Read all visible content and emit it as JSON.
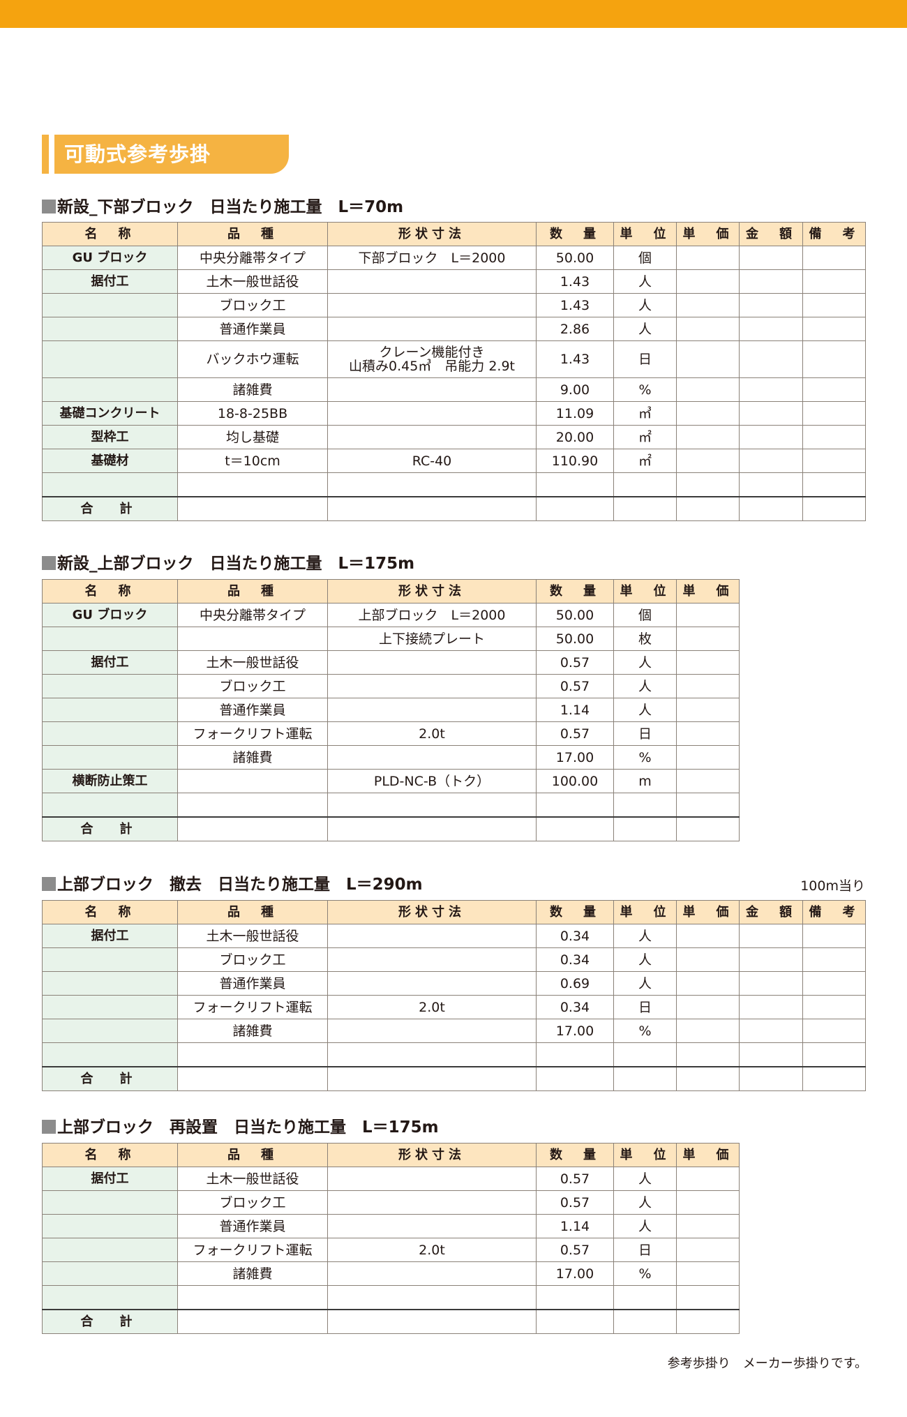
{
  "title": "可動式参考歩掛",
  "colors": {
    "accent": "#f5a30f",
    "title_band": "#f5b342",
    "header_bg": "#fde5bf",
    "name_col_bg": "#e8f3ea"
  },
  "sections": [
    {
      "title": "新設_下部ブロック　日当たり施工量　L＝70m",
      "note": "",
      "headers": [
        "名　称",
        "品　種",
        "形状寸法",
        "数　量",
        "単　位",
        "単　価",
        "金　額",
        "備　考"
      ],
      "rows": [
        [
          "GU ブロック",
          "中央分離帯タイプ",
          "下部ブロック　L＝2000",
          "50.00",
          "個"
        ],
        [
          "据付工",
          "土木一般世話役",
          "",
          "1.43",
          "人"
        ],
        [
          "",
          "ブロック工",
          "",
          "1.43",
          "人"
        ],
        [
          "",
          "普通作業員",
          "",
          "2.86",
          "人"
        ],
        [
          "",
          "バックホウ運転",
          "クレーン機能付き\n山積み0.45㎥　吊能力 2.9t",
          "1.43",
          "日"
        ],
        [
          "",
          "諸雑費",
          "",
          "9.00",
          "%"
        ],
        [
          "基礎コンクリート",
          "18-8-25BB",
          "",
          "11.09",
          "㎥"
        ],
        [
          "型枠工",
          "均し基礎",
          "",
          "20.00",
          "㎡"
        ],
        [
          "基礎材",
          "t＝10cm",
          "RC-40",
          "110.90",
          "㎡"
        ],
        [
          "",
          "",
          "",
          "",
          ""
        ]
      ],
      "total_label": "合　計"
    },
    {
      "title": "新設_上部ブロック　日当たり施工量　L＝175m",
      "note": "",
      "headers": [
        "名　称",
        "品　種",
        "形状寸法",
        "数　量",
        "単　位",
        "単　価"
      ],
      "rows": [
        [
          "GU ブロック",
          "中央分離帯タイプ",
          "上部ブロック　L＝2000",
          "50.00",
          "個"
        ],
        [
          "",
          "",
          "上下接続プレート",
          "50.00",
          "枚"
        ],
        [
          "据付工",
          "土木一般世話役",
          "",
          "0.57",
          "人"
        ],
        [
          "",
          "ブロック工",
          "",
          "0.57",
          "人"
        ],
        [
          "",
          "普通作業員",
          "",
          "1.14",
          "人"
        ],
        [
          "",
          "フォークリフト運転",
          "2.0t",
          "0.57",
          "日"
        ],
        [
          "",
          "諸雑費",
          "",
          "17.00",
          "%"
        ],
        [
          "横断防止策工",
          "",
          "PLD-NC-B（トク）",
          "100.00",
          "m"
        ],
        [
          "",
          "",
          "",
          "",
          ""
        ]
      ],
      "total_label": "合　計"
    },
    {
      "title": "上部ブロック　撤去　日当たり施工量　L＝290m",
      "note": "100m当り",
      "headers": [
        "名　称",
        "品　種",
        "形状寸法",
        "数　量",
        "単　位",
        "単　価",
        "金　額",
        "備　考"
      ],
      "rows": [
        [
          "据付工",
          "土木一般世話役",
          "",
          "0.34",
          "人"
        ],
        [
          "",
          "ブロック工",
          "",
          "0.34",
          "人"
        ],
        [
          "",
          "普通作業員",
          "",
          "0.69",
          "人"
        ],
        [
          "",
          "フォークリフト運転",
          "2.0t",
          "0.34",
          "日"
        ],
        [
          "",
          "諸雑費",
          "",
          "17.00",
          "%"
        ],
        [
          "",
          "",
          "",
          "",
          ""
        ]
      ],
      "total_label": "合　計"
    },
    {
      "title": "上部ブロック　再設置　日当たり施工量　L＝175m",
      "note": "",
      "headers": [
        "名　称",
        "品　種",
        "形状寸法",
        "数　量",
        "単　位",
        "単　価"
      ],
      "rows": [
        [
          "据付工",
          "土木一般世話役",
          "",
          "0.57",
          "人"
        ],
        [
          "",
          "ブロック工",
          "",
          "0.57",
          "人"
        ],
        [
          "",
          "普通作業員",
          "",
          "1.14",
          "人"
        ],
        [
          "",
          "フォークリフト運転",
          "2.0t",
          "0.57",
          "日"
        ],
        [
          "",
          "諸雑費",
          "",
          "17.00",
          "%"
        ],
        [
          "",
          "",
          "",
          "",
          ""
        ]
      ],
      "total_label": "合　計"
    }
  ],
  "footer_note": "参考歩掛り　メーカー歩掛りです。"
}
